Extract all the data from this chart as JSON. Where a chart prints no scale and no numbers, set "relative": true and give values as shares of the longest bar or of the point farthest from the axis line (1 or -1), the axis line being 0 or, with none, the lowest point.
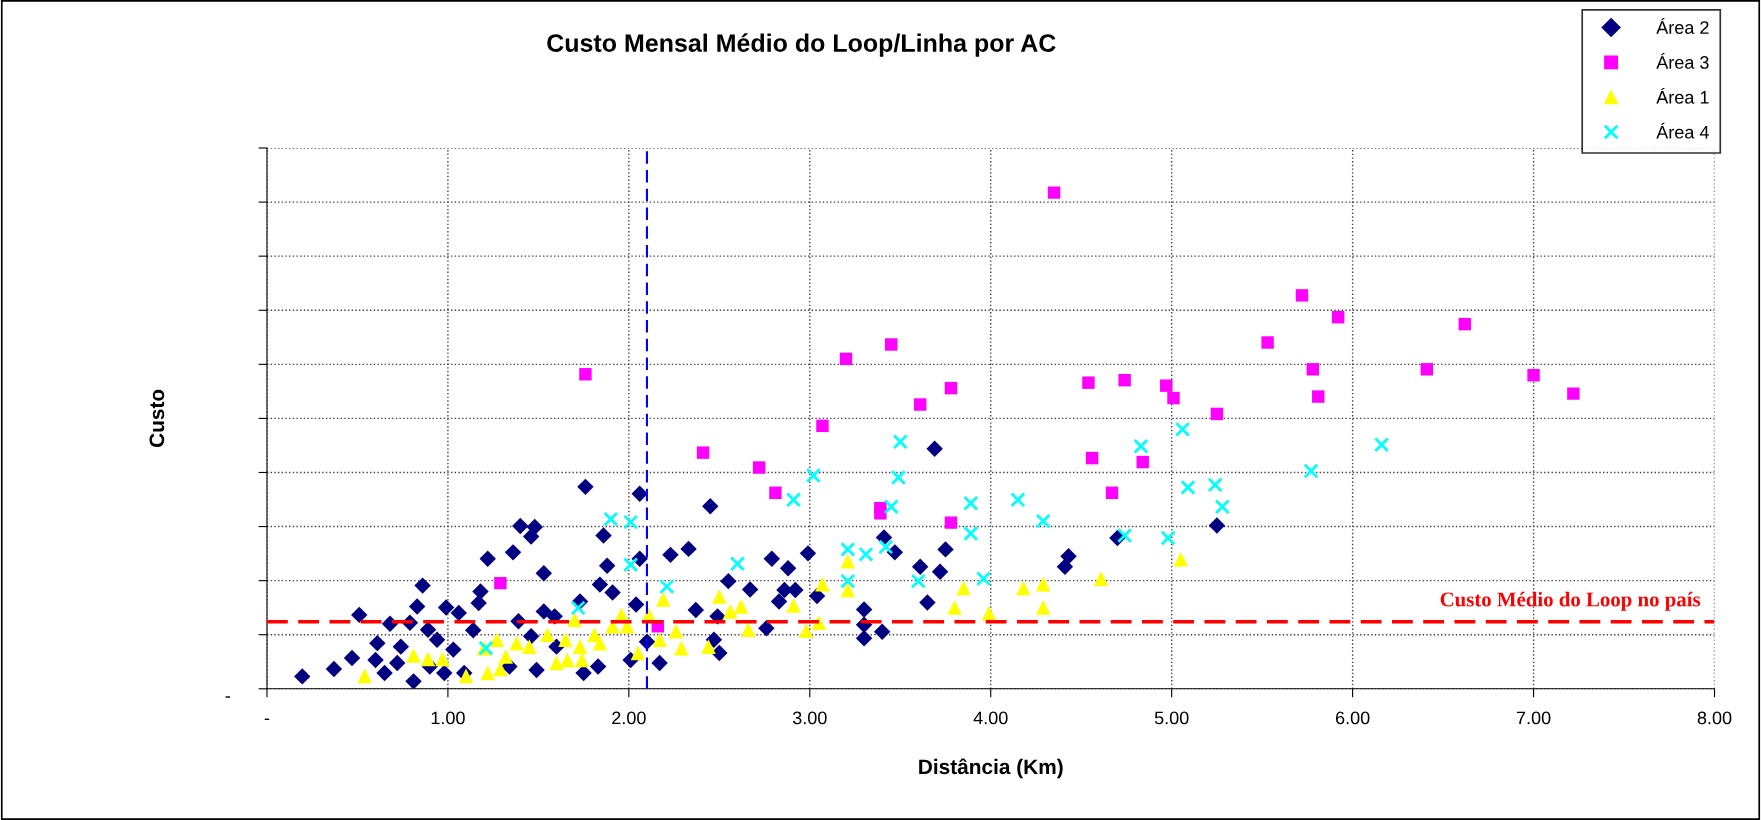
{
  "chart_data": {
    "type": "scatter",
    "title": "Custo Mensal Médio do Loop/Linha por AC",
    "xlabel": "Distância (Km)",
    "ylabel": "Custo",
    "relative": true,
    "xlim": [
      0,
      8
    ],
    "xticks": [
      {
        "value": 0,
        "label": "-"
      },
      {
        "value": 1,
        "label": "1.00"
      },
      {
        "value": 2,
        "label": "2.00"
      },
      {
        "value": 3,
        "label": "3.00"
      },
      {
        "value": 4,
        "label": "4.00"
      },
      {
        "value": 5,
        "label": "5.00"
      },
      {
        "value": 6,
        "label": "6.00"
      },
      {
        "value": 7,
        "label": "7.00"
      },
      {
        "value": 8,
        "label": "8.00"
      }
    ],
    "annotations": [
      "-"
    ],
    "grid": true,
    "legend": "top right",
    "series": [
      {
        "name": "Área 2",
        "color": "#000080",
        "marker": "diamond",
        "x": [
          0.195,
          0.37,
          0.47,
          0.51,
          0.61,
          0.6,
          0.68,
          0.65,
          0.72,
          0.74,
          0.79,
          0.83,
          0.81,
          0.86,
          0.89,
          0.94,
          0.99,
          0.98,
          1.03,
          1.06,
          1.14,
          1.17,
          1.18,
          1.22,
          1.36,
          1.4,
          1.48,
          1.46,
          1.53,
          1.39,
          1.46,
          1.53,
          1.59,
          1.6,
          1.73,
          1.76,
          1.86,
          1.88,
          1.84,
          1.91,
          2.04,
          2.06,
          2.06,
          2.1,
          2.17,
          2.23,
          2.33,
          2.37,
          2.45,
          2.49,
          2.55,
          2.67,
          2.47,
          2.5,
          2.76,
          2.79,
          2.83,
          2.01,
          1.83,
          1.09,
          0.9,
          1.49,
          1.34,
          1.75,
          2.88,
          2.86,
          2.92,
          2.99,
          3.04,
          3.3,
          3.3,
          3.3,
          3.4,
          3.41,
          3.47,
          3.61,
          3.65,
          3.69,
          3.72,
          3.75,
          4.41,
          4.43,
          4.7,
          5.25
        ],
        "values": [
          0.025,
          0.04,
          0.062,
          0.149,
          0.092,
          0.058,
          0.131,
          0.032,
          0.052,
          0.085,
          0.133,
          0.166,
          0.015,
          0.208,
          0.119,
          0.099,
          0.164,
          0.032,
          0.079,
          0.153,
          0.118,
          0.173,
          0.196,
          0.262,
          0.275,
          0.328,
          0.326,
          0.307,
          0.233,
          0.136,
          0.106,
          0.156,
          0.146,
          0.085,
          0.176,
          0.407,
          0.309,
          0.248,
          0.21,
          0.194,
          0.17,
          0.393,
          0.262,
          0.095,
          0.052,
          0.27,
          0.282,
          0.159,
          0.368,
          0.146,
          0.217,
          0.2,
          0.099,
          0.072,
          0.122,
          0.262,
          0.176,
          0.058,
          0.045,
          0.032,
          0.045,
          0.038,
          0.045,
          0.032,
          0.243,
          0.199,
          0.199,
          0.273,
          0.187,
          0.16,
          0.129,
          0.102,
          0.115,
          0.305,
          0.275,
          0.246,
          0.174,
          0.484,
          0.236,
          0.281,
          0.246,
          0.267,
          0.304,
          0.329
        ]
      },
      {
        "name": "Área 3",
        "color": "#ff00ff",
        "marker": "square",
        "x": [
          1.29,
          1.76,
          2.16,
          2.41,
          2.72,
          2.81,
          3.07,
          3.2,
          3.39,
          3.39,
          3.45,
          3.61,
          3.78,
          3.78,
          4.35,
          4.54,
          4.56,
          4.67,
          4.74,
          4.84,
          4.97,
          5.01,
          5.25,
          5.53,
          5.72,
          5.78,
          5.81,
          5.92,
          6.41,
          6.62,
          7.0,
          7.22
        ],
        "values": [
          0.213,
          0.634,
          0.126,
          0.476,
          0.446,
          0.395,
          0.53,
          0.665,
          0.364,
          0.354,
          0.694,
          0.573,
          0.606,
          0.335,
          1.0,
          0.617,
          0.465,
          0.395,
          0.622,
          0.457,
          0.611,
          0.586,
          0.554,
          0.698,
          0.793,
          0.644,
          0.589,
          0.749,
          0.644,
          0.735,
          0.632,
          0.595
        ]
      },
      {
        "name": "Área 1",
        "color": "#ffff00",
        "marker": "triangle",
        "x": [
          0.54,
          0.81,
          0.89,
          0.97,
          1.1,
          1.22,
          1.2,
          1.27,
          1.29,
          1.32,
          1.38,
          1.45,
          1.55,
          1.6,
          1.65,
          1.66,
          1.7,
          1.73,
          1.74,
          1.81,
          1.84,
          1.91,
          1.96,
          1.99,
          2.05,
          2.11,
          2.17,
          2.19,
          2.26,
          2.29,
          2.44,
          2.5,
          2.56,
          2.62,
          2.66,
          2.91,
          2.98,
          3.05,
          3.07,
          3.21,
          3.21,
          3.8,
          3.85,
          3.99,
          4.18,
          4.29,
          4.29,
          4.61,
          5.05
        ],
        "values": [
          0.026,
          0.067,
          0.06,
          0.06,
          0.026,
          0.032,
          0.082,
          0.099,
          0.04,
          0.065,
          0.092,
          0.085,
          0.109,
          0.052,
          0.099,
          0.058,
          0.139,
          0.085,
          0.058,
          0.109,
          0.092,
          0.126,
          0.149,
          0.126,
          0.072,
          0.149,
          0.099,
          0.18,
          0.116,
          0.082,
          0.085,
          0.186,
          0.156,
          0.166,
          0.119,
          0.168,
          0.117,
          0.133,
          0.211,
          0.257,
          0.199,
          0.164,
          0.203,
          0.152,
          0.203,
          0.211,
          0.164,
          0.222,
          0.261
        ]
      },
      {
        "name": "Área 4",
        "color": "#00ffff",
        "marker": "cross",
        "x": [
          1.21,
          1.72,
          1.9,
          2.01,
          2.01,
          2.21,
          2.6,
          2.91,
          3.02,
          3.21,
          3.21,
          3.31,
          3.42,
          3.45,
          3.49,
          3.5,
          3.6,
          3.89,
          3.89,
          3.96,
          4.15,
          4.29,
          4.74,
          4.83,
          4.98,
          5.06,
          5.09,
          5.24,
          5.28,
          5.77,
          6.16
        ],
        "values": [
          0.082,
          0.163,
          0.342,
          0.336,
          0.25,
          0.206,
          0.252,
          0.381,
          0.43,
          0.281,
          0.217,
          0.271,
          0.286,
          0.367,
          0.426,
          0.498,
          0.217,
          0.374,
          0.313,
          0.222,
          0.381,
          0.338,
          0.309,
          0.489,
          0.304,
          0.523,
          0.406,
          0.411,
          0.367,
          0.439,
          0.492
        ]
      }
    ],
    "ref_lines": [
      {
        "axis": "x",
        "value": 2.1,
        "color": "#0000ff",
        "line_style": "dashed"
      },
      {
        "axis": "y",
        "value": 0.135,
        "label": "Custo Médio do Loop no país",
        "color": "#ff0000",
        "line_style": "dashed"
      }
    ]
  }
}
